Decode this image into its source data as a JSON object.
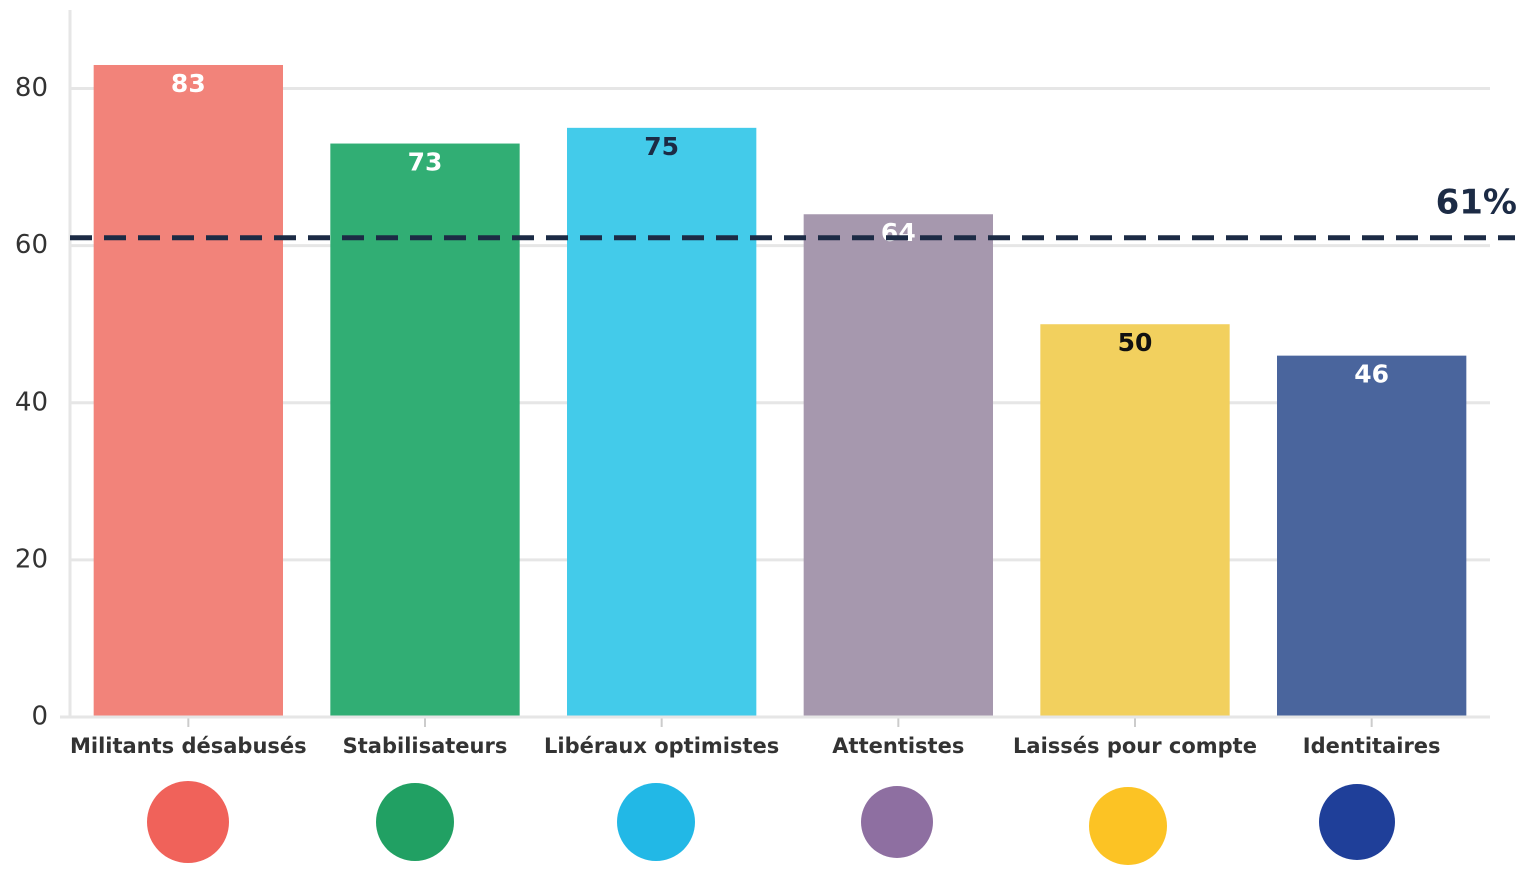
{
  "chart_data": {
    "type": "bar",
    "categories": [
      "Militants désabusés",
      "Stabilisateurs",
      "Libéraux optimistes",
      "Attentistes",
      "Laissés pour compte",
      "Identitaires"
    ],
    "values": [
      83,
      73,
      75,
      64,
      50,
      46
    ],
    "colors": [
      "#f2837a",
      "#31ae74",
      "#43cbea",
      "#a698ae",
      "#f2d05e",
      "#4a659d"
    ],
    "label_colors": [
      "#ffffff",
      "#ffffff",
      "#1c2b45",
      "#ffffff",
      "#111111",
      "#ffffff"
    ],
    "ylim": [
      0,
      90
    ],
    "yticks": [
      0,
      20,
      40,
      60,
      80
    ],
    "grid": true,
    "reference_line": {
      "value": 61,
      "label": "61%",
      "color": "#1c2b45"
    }
  }
}
